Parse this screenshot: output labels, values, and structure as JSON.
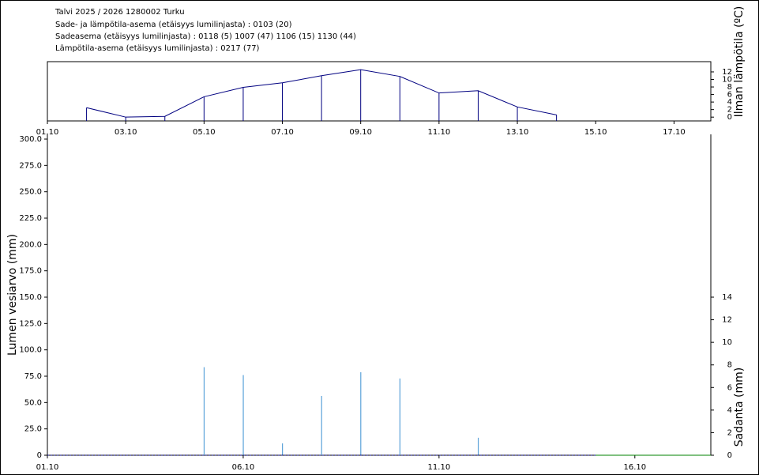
{
  "chart_data": [
    {
      "type": "line",
      "title": "Talvi 2025 / 2026 1280002 Turku",
      "annotations": [
        "Sade- ja lämpötila-asema (etäisyys lumilinjasta) :  0103 (20)",
        "Sadeasema (etäisyys lumilinjasta) :  0118 (5) 1007 (47) 1106 (15) 1130 (44)",
        "Lämpötila-asema (etäisyys lumilinjasta) :  0217 (77)"
      ],
      "y2label": "Ilman lämpötila (ºC)",
      "xlim": [
        1,
        17.94
      ],
      "xticks": [
        {
          "value": 1,
          "label": "01.10"
        },
        {
          "value": 3,
          "label": "03.10"
        },
        {
          "value": 5,
          "label": "05.10"
        },
        {
          "value": 7,
          "label": "07.10"
        },
        {
          "value": 9,
          "label": "09.10"
        },
        {
          "value": 11,
          "label": "11.10"
        },
        {
          "value": 13,
          "label": "13.10"
        },
        {
          "value": 15,
          "label": "15.10"
        },
        {
          "value": 17,
          "label": "17.10"
        }
      ],
      "y2lim": [
        -0.8,
        14.3
      ],
      "y2ticks": [
        0,
        2,
        4,
        6,
        8,
        10,
        12
      ],
      "series": [
        {
          "color": "#000080",
          "axis": "y2",
          "x": [
            2,
            3,
            4,
            5,
            6,
            7,
            8,
            9,
            10,
            11,
            12,
            13,
            14
          ],
          "values": [
            2.5,
            0,
            0.2,
            5.4,
            7.9,
            9.1,
            11,
            12.6,
            10.8,
            6.4,
            7,
            2.7,
            0.6
          ]
        }
      ]
    },
    {
      "type": "bar",
      "ylabel": "Lumen vesiarvo (mm)",
      "y2label": "Sadanta (mm)",
      "xlim": [
        1,
        17.94
      ],
      "xticks": [
        {
          "value": 1,
          "label": "01.10"
        },
        {
          "value": 6,
          "label": "06.10"
        },
        {
          "value": 11,
          "label": "11.10"
        },
        {
          "value": 16,
          "label": "16.10"
        }
      ],
      "ylim": [
        0,
        300
      ],
      "yticks": [
        0,
        {
          "value": 25,
          "label": "25.0"
        },
        {
          "value": 50,
          "label": "50.0"
        },
        {
          "value": 75,
          "label": "75.0"
        },
        {
          "value": 100,
          "label": "100.0"
        },
        {
          "value": 125,
          "label": "125.0"
        },
        {
          "value": 150,
          "label": "150.0"
        },
        {
          "value": 175,
          "label": "175.0"
        },
        {
          "value": 200,
          "label": "200.0"
        },
        {
          "value": 225,
          "label": "225.0"
        },
        {
          "value": 250,
          "label": "250.0"
        },
        {
          "value": 275,
          "label": "275.0"
        },
        {
          "value": 300,
          "label": "300.0"
        }
      ],
      "y2lim": [
        0,
        28
      ],
      "y2ticks": [
        0,
        2,
        4,
        6,
        8,
        10,
        12,
        14
      ],
      "series": [
        {
          "type": "bar",
          "color": "#5ba3d9",
          "axis": "y2",
          "x": [
            5,
            6,
            7,
            8,
            9,
            10,
            12
          ],
          "values": [
            7.8,
            7.1,
            1.05,
            5.25,
            7.35,
            6.8,
            1.55
          ]
        },
        {
          "type": "line",
          "color": "#000080",
          "dashed": true,
          "x": [
            1,
            2,
            3,
            4,
            5,
            6,
            7,
            8,
            9,
            10,
            11,
            12,
            13,
            14,
            15
          ],
          "values": [
            0,
            0,
            0,
            0,
            0,
            0,
            0,
            0,
            0,
            0,
            0,
            0,
            0,
            0,
            0
          ]
        },
        {
          "type": "line",
          "color": "#008000",
          "x": [
            15,
            16,
            17,
            18
          ],
          "values": [
            0,
            0,
            0,
            0
          ]
        }
      ]
    }
  ]
}
